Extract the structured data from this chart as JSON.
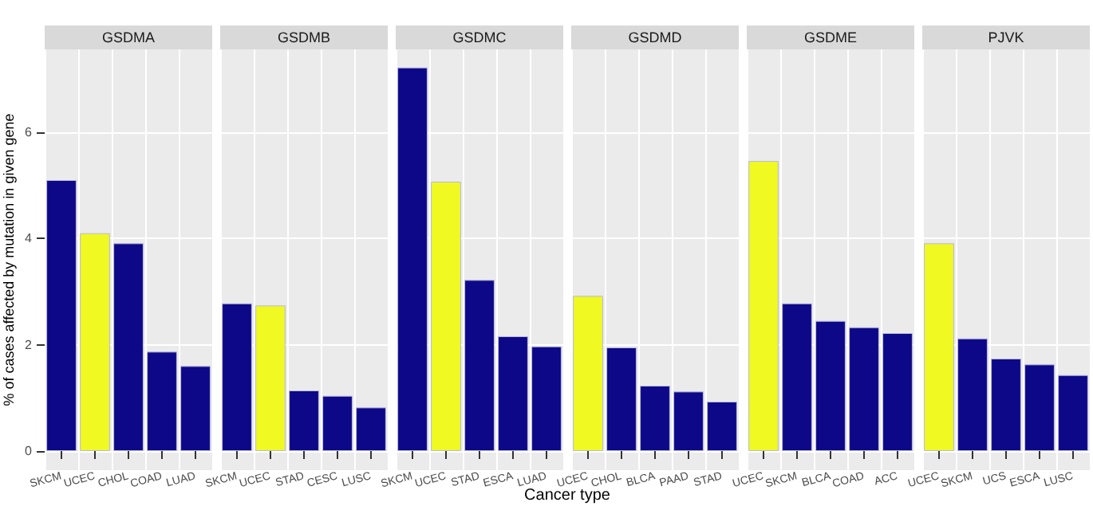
{
  "chart_data": [
    {
      "type": "bar",
      "title": "GSDMA",
      "ylabel": "% of cases affected by mutation in given gene",
      "categories": [
        "SKCM",
        "UCEC",
        "CHOL",
        "COAD",
        "LUAD"
      ],
      "values": [
        5.1,
        4.1,
        3.91,
        1.87,
        1.6
      ],
      "colors": [
        "#0d0887",
        "#f0f921",
        "#0d0887",
        "#0d0887",
        "#0d0887"
      ],
      "ylim": [
        -0.36,
        7.56
      ],
      "yticks": [
        0,
        2,
        4,
        6
      ],
      "grid": true
    },
    {
      "type": "bar",
      "title": "GSDMB",
      "categories": [
        "SKCM",
        "UCEC",
        "STAD",
        "CESC",
        "LUSC"
      ],
      "values": [
        2.78,
        2.74,
        1.14,
        1.04,
        0.82
      ],
      "colors": [
        "#0d0887",
        "#f0f921",
        "#0d0887",
        "#0d0887",
        "#0d0887"
      ],
      "ylim": [
        -0.36,
        7.56
      ],
      "yticks": [
        0,
        2,
        4,
        6
      ],
      "grid": true,
      "tick_labels": "x"
    },
    {
      "type": "bar",
      "title": "GSDMC",
      "xlabel": "Cancer type",
      "categories": [
        "SKCM",
        "UCEC",
        "STAD",
        "ESCA",
        "LUAD"
      ],
      "values": [
        7.22,
        5.07,
        3.22,
        2.16,
        1.97
      ],
      "colors": [
        "#0d0887",
        "#f0f921",
        "#0d0887",
        "#0d0887",
        "#0d0887"
      ],
      "ylim": [
        -0.36,
        7.56
      ],
      "yticks": [
        0,
        2,
        4,
        6
      ],
      "grid": true,
      "tick_labels": "x"
    },
    {
      "type": "bar",
      "title": "GSDMD",
      "categories": [
        "UCEC",
        "CHOL",
        "BLCA",
        "PAAD",
        "STAD"
      ],
      "values": [
        2.92,
        1.95,
        1.23,
        1.12,
        0.93
      ],
      "colors": [
        "#f0f921",
        "#0d0887",
        "#0d0887",
        "#0d0887",
        "#0d0887"
      ],
      "ylim": [
        -0.36,
        7.56
      ],
      "yticks": [
        0,
        2,
        4,
        6
      ],
      "grid": true,
      "tick_labels": "x"
    },
    {
      "type": "bar",
      "title": "GSDME",
      "categories": [
        "UCEC",
        "SKCM",
        "BLCA",
        "COAD",
        "ACC"
      ],
      "values": [
        5.46,
        2.78,
        2.45,
        2.33,
        2.22
      ],
      "colors": [
        "#f0f921",
        "#0d0887",
        "#0d0887",
        "#0d0887",
        "#0d0887"
      ],
      "ylim": [
        -0.36,
        7.56
      ],
      "yticks": [
        0,
        2,
        4,
        6
      ],
      "grid": true,
      "tick_labels": "x"
    },
    {
      "type": "bar",
      "title": "PJVK",
      "categories": [
        "UCEC",
        "SKCM",
        "UCS",
        "ESCA",
        "LUSC"
      ],
      "values": [
        3.91,
        2.12,
        1.74,
        1.63,
        1.43
      ],
      "colors": [
        "#f0f921",
        "#0d0887",
        "#0d0887",
        "#0d0887",
        "#0d0887"
      ],
      "ylim": [
        -0.36,
        7.56
      ],
      "yticks": [
        0,
        2,
        4,
        6
      ],
      "grid": true,
      "tick_labels": "x"
    }
  ]
}
